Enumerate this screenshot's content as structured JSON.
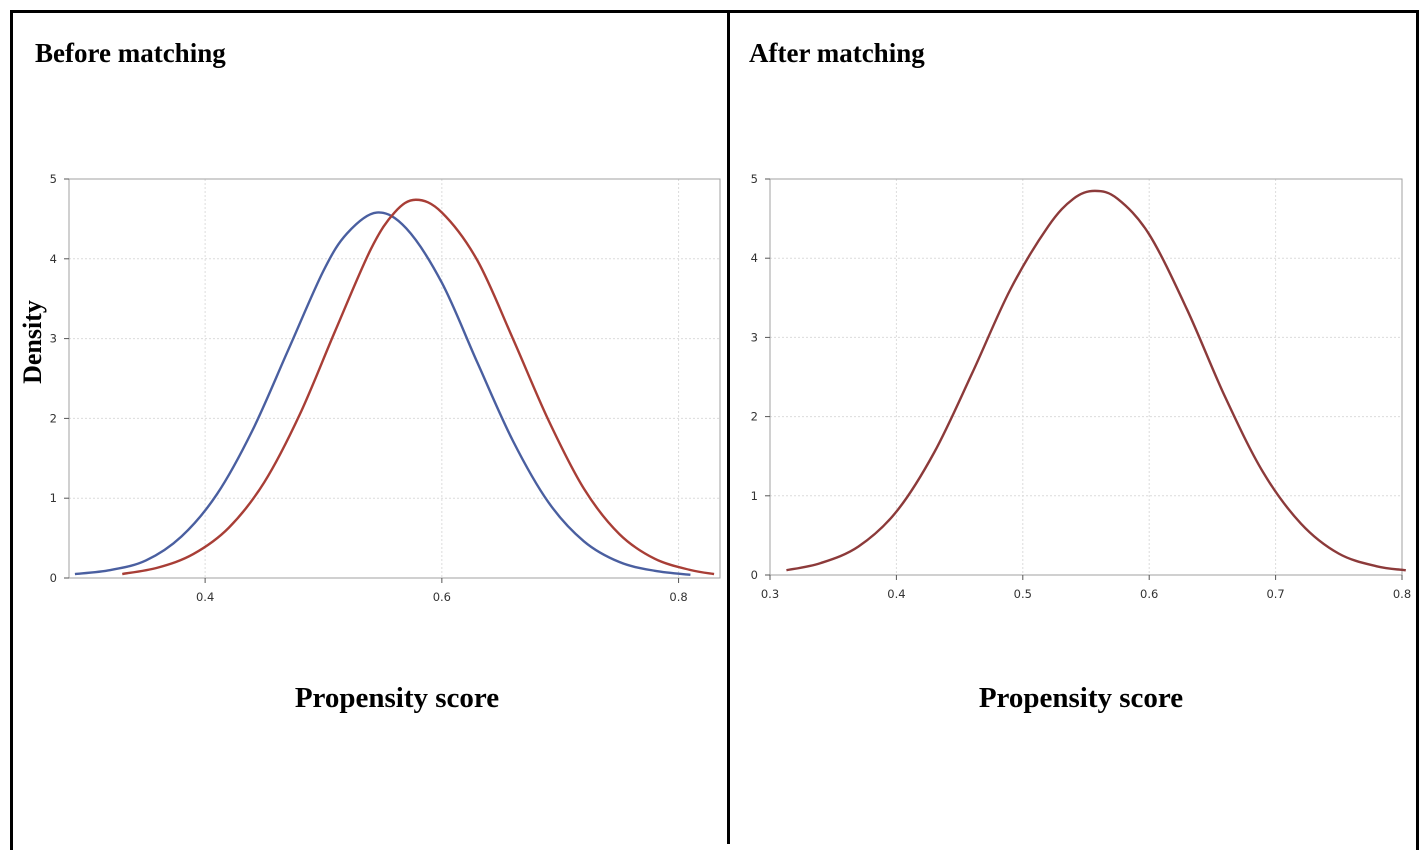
{
  "chart_data": [
    {
      "type": "line",
      "title": "Before matching",
      "xlabel": "Propensity score",
      "ylabel": "Density",
      "xlim": [
        0.285,
        0.835
      ],
      "ylim": [
        0,
        5
      ],
      "xticks": [
        0.4,
        0.6,
        0.8
      ],
      "xtick_labels": [
        "0.4",
        "0.6",
        "0.8"
      ],
      "yticks": [
        0,
        1,
        2,
        3,
        4,
        5
      ],
      "ytick_labels": [
        "0",
        "1",
        "2",
        "3",
        "4",
        "5"
      ],
      "grid": true,
      "series": [
        {
          "color": "#4a5fa0",
          "x": [
            0.29,
            0.32,
            0.35,
            0.38,
            0.41,
            0.44,
            0.47,
            0.5,
            0.52,
            0.545,
            0.57,
            0.6,
            0.63,
            0.66,
            0.69,
            0.72,
            0.75,
            0.78,
            0.81
          ],
          "y": [
            0.05,
            0.1,
            0.22,
            0.52,
            1.05,
            1.85,
            2.85,
            3.85,
            4.32,
            4.58,
            4.38,
            3.7,
            2.7,
            1.72,
            0.95,
            0.46,
            0.2,
            0.09,
            0.04
          ]
        },
        {
          "color": "#a83e36",
          "x": [
            0.33,
            0.36,
            0.39,
            0.42,
            0.45,
            0.48,
            0.51,
            0.54,
            0.56,
            0.578,
            0.6,
            0.63,
            0.66,
            0.69,
            0.72,
            0.75,
            0.78,
            0.81,
            0.83
          ],
          "y": [
            0.05,
            0.13,
            0.3,
            0.63,
            1.2,
            2.05,
            3.1,
            4.12,
            4.58,
            4.74,
            4.58,
            3.98,
            3.0,
            1.98,
            1.12,
            0.55,
            0.24,
            0.1,
            0.05
          ]
        }
      ]
    },
    {
      "type": "line",
      "title": "After matching",
      "xlabel": "Propensity score",
      "ylabel": "",
      "xlim": [
        0.3,
        0.8
      ],
      "ylim": [
        0,
        5
      ],
      "xticks": [
        0.3,
        0.4,
        0.5,
        0.6,
        0.7,
        0.8
      ],
      "xtick_labels": [
        "0.3",
        "0.4",
        "0.5",
        "0.6",
        "0.7",
        "0.8"
      ],
      "yticks": [
        0,
        1,
        2,
        3,
        4,
        5
      ],
      "ytick_labels": [
        "0",
        "1",
        "2",
        "3",
        "4",
        "5"
      ],
      "grid": true,
      "series": [
        {
          "color": "#8c3a3a",
          "x": [
            0.313,
            0.34,
            0.37,
            0.4,
            0.43,
            0.46,
            0.49,
            0.52,
            0.54,
            0.557,
            0.575,
            0.6,
            0.63,
            0.66,
            0.69,
            0.72,
            0.75,
            0.78,
            0.803
          ],
          "y": [
            0.06,
            0.15,
            0.36,
            0.8,
            1.55,
            2.55,
            3.6,
            4.4,
            4.75,
            4.85,
            4.75,
            4.3,
            3.35,
            2.25,
            1.3,
            0.65,
            0.27,
            0.11,
            0.06
          ]
        }
      ]
    }
  ]
}
